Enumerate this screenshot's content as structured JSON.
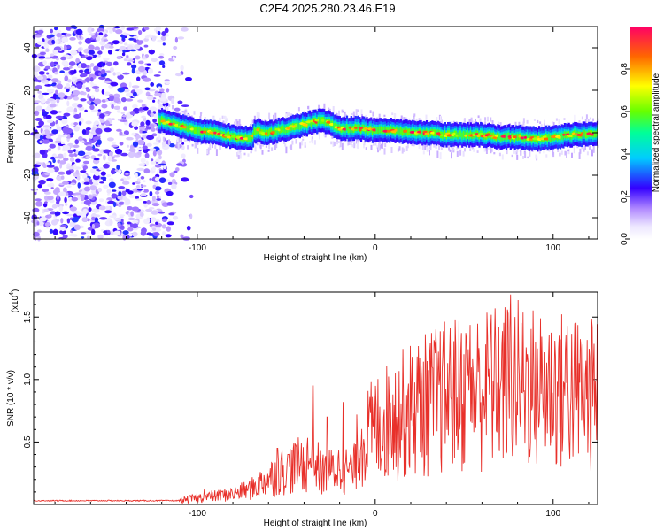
{
  "title": "C2E4.2025.280.23.46.E19",
  "chart_data": [
    {
      "type": "heatmap",
      "xlabel": "Height of straight line (km)",
      "ylabel": "Frequency (Hz)",
      "xlim": [
        -192,
        125
      ],
      "ylim": [
        -50,
        50
      ],
      "xticks": [
        {
          "value": -100,
          "label": "-100"
        },
        {
          "value": 0,
          "label": "0"
        },
        {
          "value": 100,
          "label": "100"
        }
      ],
      "yticks": [
        {
          "value": -40,
          "label": "-40"
        },
        {
          "value": -20,
          "label": "-20"
        },
        {
          "value": 0,
          "label": "0"
        },
        {
          "value": 20,
          "label": "20"
        },
        {
          "value": 40,
          "label": "40"
        }
      ],
      "noise_region_x": [
        -192,
        -103
      ],
      "signal_start_x": -122,
      "ridge": {
        "x": [
          -122,
          -110,
          -100,
          -90,
          -80,
          -70,
          -68,
          -60,
          -50,
          -40,
          -30,
          -25,
          -20,
          -10,
          0,
          10,
          20,
          30,
          40,
          50,
          60,
          70,
          80,
          90,
          100,
          110,
          125
        ],
        "y": [
          6,
          3,
          1,
          0,
          -2,
          -3,
          1,
          0,
          2,
          4,
          6,
          4,
          2,
          2,
          1,
          1,
          0,
          0,
          -1,
          -1,
          -1,
          -2,
          -2,
          -3,
          -2,
          -1,
          0
        ]
      },
      "colorbar": {
        "label": "Normalized spectral amplitude",
        "range": [
          0,
          1
        ],
        "ticks": [
          {
            "value": 0.0,
            "label": "0.0"
          },
          {
            "value": 0.2,
            "label": "0.2"
          },
          {
            "value": 0.4,
            "label": "0.4"
          },
          {
            "value": 0.6,
            "label": "0.6"
          },
          {
            "value": 0.8,
            "label": "0.8"
          }
        ]
      }
    },
    {
      "type": "line",
      "color": "#e8302a",
      "xlabel": "Height of straight line (km)",
      "ylabel": "SNR (10 * v/v)",
      "scale_label": "(x10",
      "scale_exp": "4",
      "xlim": [
        -192,
        125
      ],
      "ylim": [
        0,
        17000
      ],
      "xticks": [
        {
          "value": -100,
          "label": "-100"
        },
        {
          "value": 0,
          "label": "0"
        },
        {
          "value": 100,
          "label": "100"
        }
      ],
      "yticks": [
        {
          "value": 5000,
          "label": "0.5"
        },
        {
          "value": 10000,
          "label": "1.0"
        },
        {
          "value": 15000,
          "label": "1.5"
        }
      ],
      "envelope": {
        "x": [
          -192,
          -110,
          -100,
          -80,
          -70,
          -60,
          -50,
          -40,
          -35,
          -30,
          -20,
          -12,
          -10,
          0,
          20,
          40,
          60,
          80,
          100,
          125
        ],
        "y": [
          300,
          300,
          500,
          800,
          1200,
          2000,
          2800,
          3200,
          3600,
          2400,
          2800,
          2600,
          4500,
          6000,
          7500,
          8500,
          9000,
          9500,
          9000,
          8500
        ]
      },
      "spikes": [
        {
          "x": -96,
          "y": 1200
        },
        {
          "x": -55,
          "y": 4500
        },
        {
          "x": -49,
          "y": 4000
        },
        {
          "x": -35,
          "y": 9500
        },
        {
          "x": -27,
          "y": 7000
        },
        {
          "x": -18,
          "y": 8200
        },
        {
          "x": 10,
          "y": 8800
        },
        {
          "x": 32,
          "y": 11000
        },
        {
          "x": 52,
          "y": 10300
        },
        {
          "x": 65,
          "y": 14000
        },
        {
          "x": 76,
          "y": 16800
        },
        {
          "x": 90,
          "y": 13000
        },
        {
          "x": 108,
          "y": 14300
        },
        {
          "x": 122,
          "y": 14200
        }
      ]
    }
  ]
}
